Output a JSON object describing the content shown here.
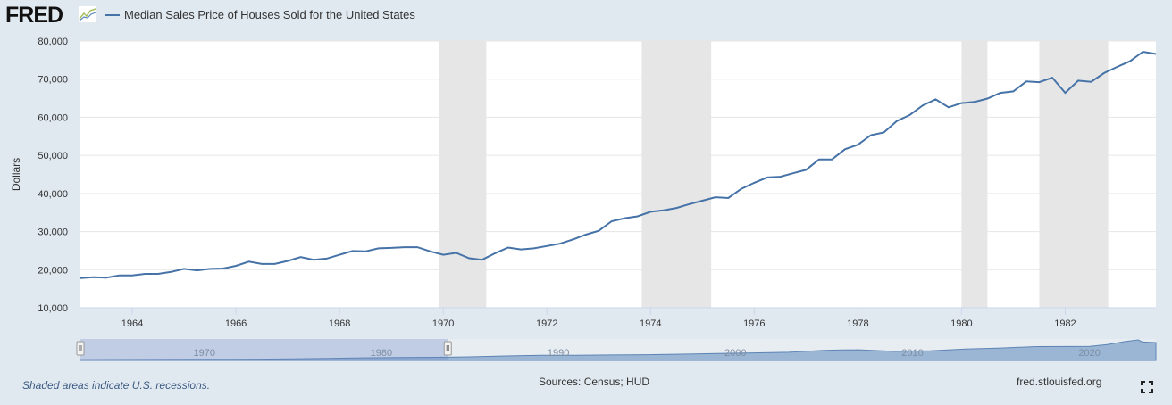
{
  "header": {
    "logo_text": "FRED",
    "series_title": "Median Sales Price of Houses Sold for the United States"
  },
  "footer": {
    "recession_note": "Shaded areas indicate U.S. recessions.",
    "sources": "Sources: Census; HUD",
    "site": "fred.stlouisfed.org"
  },
  "colors": {
    "line": "#4572a7",
    "recession": "#e6e6e6",
    "background": "#e1e9f0",
    "plot": "#ffffff"
  },
  "chart_data": {
    "type": "line",
    "title": "Median Sales Price of Houses Sold for the United States",
    "xlabel": "",
    "ylabel": "Dollars",
    "xlim": [
      1963.0,
      1983.75
    ],
    "ylim": [
      10000,
      80000
    ],
    "grid": true,
    "legend": "top-left",
    "x_ticks": [
      1964,
      1966,
      1968,
      1970,
      1972,
      1974,
      1976,
      1978,
      1980,
      1982
    ],
    "x_tick_labels": [
      "1964",
      "1966",
      "1968",
      "1970",
      "1972",
      "1974",
      "1976",
      "1978",
      "1980",
      "1982"
    ],
    "y_ticks": [
      10000,
      20000,
      30000,
      40000,
      50000,
      60000,
      70000,
      80000
    ],
    "y_tick_labels": [
      "10,000",
      "20,000",
      "30,000",
      "40,000",
      "50,000",
      "60,000",
      "70,000",
      "80,000"
    ],
    "recessions": [
      {
        "start": 1969.92,
        "end": 1970.83
      },
      {
        "start": 1973.83,
        "end": 1975.17
      },
      {
        "start": 1980.0,
        "end": 1980.5
      },
      {
        "start": 1981.5,
        "end": 1982.83
      }
    ],
    "series": [
      {
        "name": "Median Sales Price of Houses Sold for the United States",
        "x": [
          1963.0,
          1963.25,
          1963.5,
          1963.75,
          1964.0,
          1964.25,
          1964.5,
          1964.75,
          1965.0,
          1965.25,
          1965.5,
          1965.75,
          1966.0,
          1966.25,
          1966.5,
          1966.75,
          1967.0,
          1967.25,
          1967.5,
          1967.75,
          1968.0,
          1968.25,
          1968.5,
          1968.75,
          1969.0,
          1969.25,
          1969.5,
          1969.75,
          1970.0,
          1970.25,
          1970.5,
          1970.75,
          1971.0,
          1971.25,
          1971.5,
          1971.75,
          1972.0,
          1972.25,
          1972.5,
          1972.75,
          1973.0,
          1973.25,
          1973.5,
          1973.75,
          1974.0,
          1974.25,
          1974.5,
          1974.75,
          1975.0,
          1975.25,
          1975.5,
          1975.75,
          1976.0,
          1976.25,
          1976.5,
          1976.75,
          1977.0,
          1977.25,
          1977.5,
          1977.75,
          1978.0,
          1978.25,
          1978.5,
          1978.75,
          1979.0,
          1979.25,
          1979.5,
          1979.75,
          1980.0,
          1980.25,
          1980.5,
          1980.75,
          1981.0,
          1981.25,
          1981.5,
          1981.75,
          1982.0,
          1982.25,
          1982.5,
          1982.75,
          1983.0,
          1983.25,
          1983.5,
          1983.75
        ],
        "values": [
          17800,
          18000,
          17900,
          18500,
          18500,
          18900,
          18900,
          19400,
          20200,
          19800,
          20200,
          20300,
          21000,
          22100,
          21500,
          21500,
          22300,
          23300,
          22600,
          22900,
          23900,
          24900,
          24800,
          25600,
          25700,
          25900,
          25900,
          24800,
          23900,
          24400,
          23000,
          22600,
          24300,
          25800,
          25300,
          25600,
          26200,
          26800,
          27900,
          29200,
          30200,
          32700,
          33500,
          34000,
          35200,
          35600,
          36200,
          37200,
          38100,
          39000,
          38800,
          41200,
          42800,
          44200,
          44400,
          45300,
          46200,
          48900,
          48900,
          51600,
          52800,
          55300,
          56000,
          59000,
          60600,
          63100,
          64700,
          62600,
          63700,
          64000,
          64900,
          66400,
          66800,
          69400,
          69200,
          70400,
          66400,
          69600,
          69300,
          71600,
          73200,
          74700,
          77200,
          76600
        ]
      }
    ]
  },
  "navigator": {
    "labels": [
      "1970",
      "1980",
      "1990",
      "2000",
      "2010",
      "2020"
    ],
    "label_x": [
      1970,
      1980,
      1990,
      2000,
      2010,
      2020
    ],
    "range": [
      1963,
      2023.75
    ],
    "selected": [
      1963.0,
      1983.75
    ],
    "series": {
      "x": [
        1963,
        1965,
        1967,
        1969,
        1971,
        1973,
        1975,
        1977,
        1979,
        1981,
        1983,
        1985,
        1987,
        1989,
        1991,
        1993,
        1995,
        1997,
        1999,
        2001,
        2003,
        2005,
        2006,
        2007,
        2009,
        2011,
        2013,
        2015,
        2017,
        2019,
        2020,
        2021,
        2022,
        2022.75,
        2023,
        2023.75
      ],
      "values": [
        17800,
        20200,
        22300,
        25700,
        24300,
        30200,
        38100,
        46200,
        60600,
        66800,
        73200,
        82800,
        104500,
        120000,
        120000,
        126500,
        133900,
        145000,
        160000,
        175200,
        189500,
        236000,
        243000,
        247900,
        210000,
        224000,
        265000,
        289000,
        322000,
        324000,
        329000,
        369800,
        440300,
        479500,
        429000,
        417700
      ]
    }
  }
}
